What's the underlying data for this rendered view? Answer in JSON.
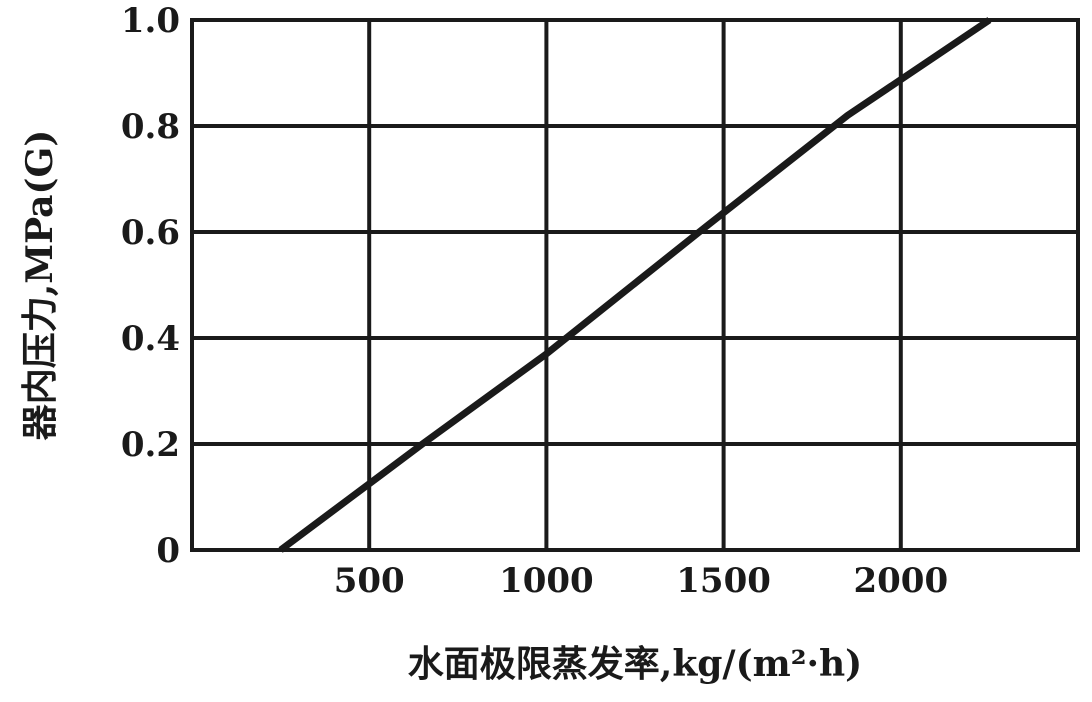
{
  "chart_data": {
    "type": "line",
    "title": "",
    "xlabel": "水面极限蒸发率,kg/(m²·h)",
    "ylabel": "器内压力,MPa(G)",
    "xlim": [
      0,
      2500
    ],
    "ylim": [
      0,
      1.0
    ],
    "x_ticks": [
      {
        "value": 500,
        "label": "500"
      },
      {
        "value": 1000,
        "label": "1000"
      },
      {
        "value": 1500,
        "label": "1500"
      },
      {
        "value": 2000,
        "label": "2000"
      }
    ],
    "y_ticks": [
      {
        "value": 0,
        "label": "0"
      },
      {
        "value": 0.2,
        "label": "0.2"
      },
      {
        "value": 0.4,
        "label": "0.4"
      },
      {
        "value": 0.6,
        "label": "0.6"
      },
      {
        "value": 0.8,
        "label": "0.8"
      },
      {
        "value": 1.0,
        "label": "1.0"
      }
    ],
    "grid": true,
    "series": [
      {
        "x": [
          250,
          450,
          650,
          1000,
          1450,
          1850,
          2250
        ],
        "y": [
          0.0,
          0.1,
          0.2,
          0.37,
          0.61,
          0.82,
          1.0
        ]
      }
    ],
    "colors": {
      "line": "#1a1a1a",
      "grid": "#1a1a1a",
      "background": "#ffffff"
    }
  }
}
